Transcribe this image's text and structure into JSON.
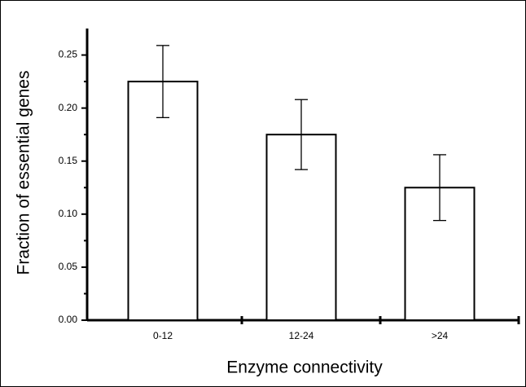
{
  "chart_data": {
    "type": "bar",
    "x_label": "Enzyme connectivity",
    "y_label": "Fraction of essential genes",
    "categories": [
      "0-12",
      "12-24",
      ">24"
    ],
    "values": [
      0.225,
      0.175,
      0.125
    ],
    "errors": [
      0.034,
      0.033,
      0.031
    ],
    "color": "#ffffff",
    "ylim": [
      0,
      0.275
    ],
    "yticks": [
      {
        "value": 0,
        "label": "0.00"
      },
      {
        "value": 0.05,
        "label": "0.05"
      },
      {
        "value": 0.1,
        "label": "0.10"
      },
      {
        "value": 0.15,
        "label": "0.15"
      },
      {
        "value": 0.2,
        "label": "0.20"
      },
      {
        "value": 0.25,
        "label": "0.25"
      }
    ],
    "grid": false
  }
}
